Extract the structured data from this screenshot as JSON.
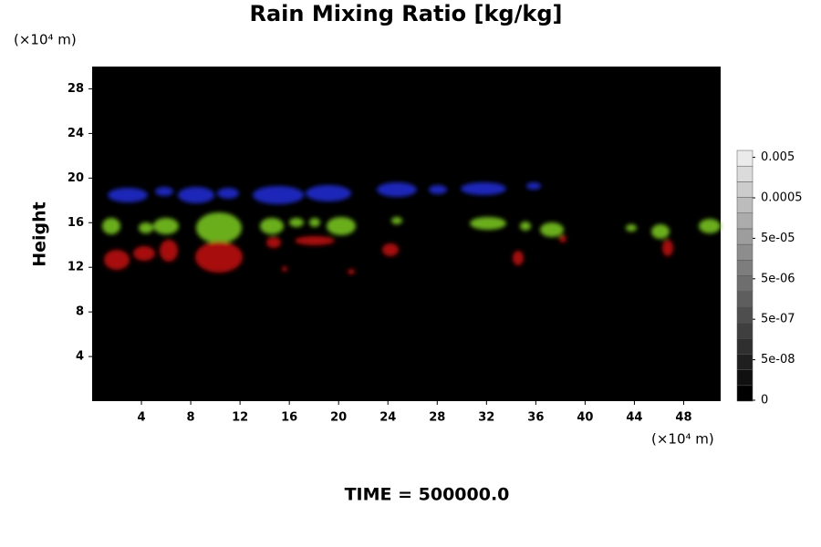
{
  "chart_data": {
    "type": "heatmap",
    "title": "Rain Mixing Ratio [kg/kg]",
    "y_label": "Height",
    "y_unit": "(×10⁴ m)",
    "x_unit": "(×10⁴ m)",
    "time_label": "TIME = 500000.0",
    "xlim": [
      0,
      51
    ],
    "xticks": [
      4,
      8,
      12,
      16,
      20,
      24,
      28,
      32,
      36,
      40,
      44,
      48
    ],
    "ylim": [
      0,
      30
    ],
    "yticks": [
      4,
      8,
      12,
      16,
      20,
      24,
      28
    ],
    "colorbar_ticks": [
      0,
      {
        "value": 5e-08,
        "label": "5e-08"
      },
      {
        "value": 5e-07,
        "label": "5e-07"
      },
      {
        "value": 5e-06,
        "label": "5e-06"
      },
      {
        "value": 5e-05,
        "label": "5e-05"
      },
      0.0005,
      0.005
    ]
  }
}
